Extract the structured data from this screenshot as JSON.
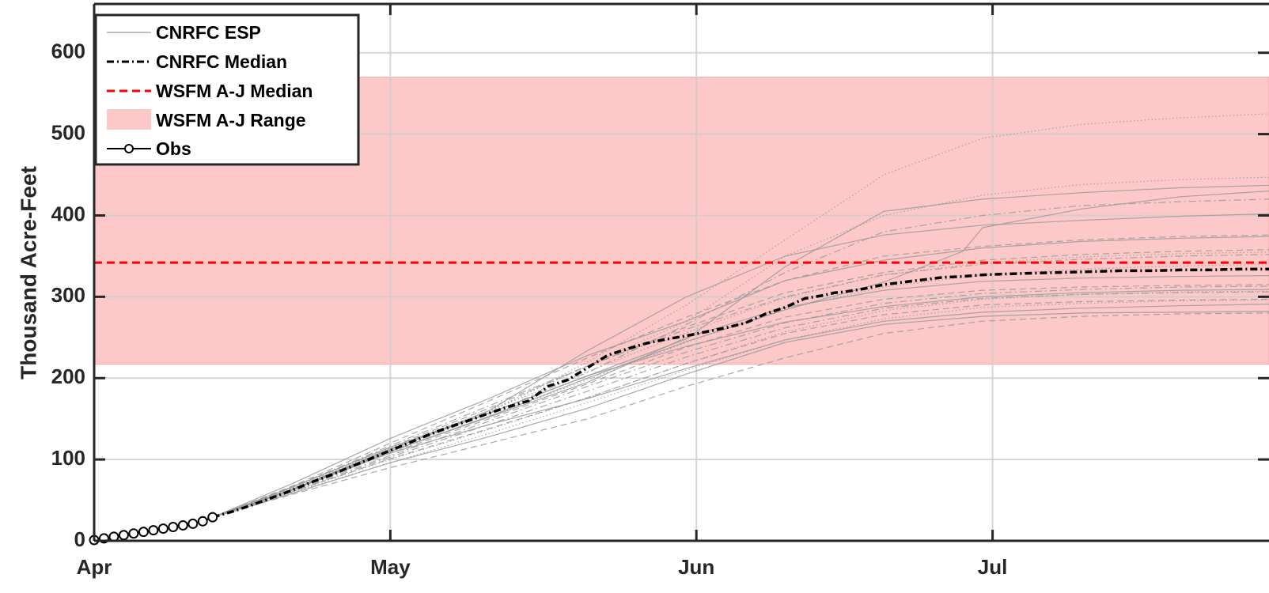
{
  "chart_data": {
    "type": "line",
    "xlabel": "",
    "ylabel": "Thousand Acre-Feet",
    "x_tick_labels": [
      "Apr",
      "May",
      "Jun",
      "Jul"
    ],
    "x_ticks_day": [
      0,
      30,
      61,
      91
    ],
    "x_range_day": [
      0,
      119
    ],
    "ylim": [
      0,
      660
    ],
    "y_ticks": [
      0,
      100,
      200,
      300,
      400,
      500,
      600
    ],
    "grid": true,
    "legend_position": "top-left",
    "legend": [
      "CNRFC ESP",
      "CNRFC Median",
      "WSFM A-J Median",
      "WSFM A-J Range",
      "Obs"
    ],
    "wsfm_range": [
      217,
      570
    ],
    "wsfm_median": 342,
    "obs": {
      "day": [
        0,
        1,
        2,
        3,
        4,
        5,
        6,
        7,
        8,
        9,
        10,
        11,
        12
      ],
      "value": [
        1,
        3,
        5,
        7,
        9,
        11,
        13,
        15,
        17,
        19,
        21,
        24,
        29
      ]
    },
    "cnrfc_median": {
      "day": [
        12,
        14,
        16,
        18,
        20,
        22,
        24,
        26,
        28,
        30,
        32,
        34,
        36,
        38,
        40,
        42,
        44,
        46,
        48,
        50,
        52,
        54,
        56,
        58,
        60,
        62,
        64,
        66,
        68,
        70,
        72,
        74,
        75,
        76,
        78,
        80,
        82,
        84,
        86,
        88,
        90,
        92,
        95,
        98,
        101,
        104,
        107,
        110,
        113,
        116,
        119
      ],
      "value": [
        29,
        36,
        44,
        53,
        62,
        72,
        81,
        91,
        101,
        111,
        121,
        131,
        140,
        148,
        157,
        165,
        172,
        190,
        198,
        213,
        228,
        236,
        243,
        248,
        252,
        257,
        262,
        268,
        279,
        287,
        298,
        302,
        305,
        306,
        310,
        315,
        318,
        321,
        324,
        325,
        327,
        328,
        329,
        330,
        331,
        332,
        332,
        333,
        333,
        334,
        334
      ]
    },
    "esp_traces": [
      {
        "style": "solid",
        "day": [
          12,
          20,
          30,
          40,
          50,
          60,
          70,
          80,
          90,
          100,
          110,
          119
        ],
        "value": [
          29,
          63,
          108,
          143,
          175,
          212,
          247,
          270,
          281,
          286,
          289,
          291
        ]
      },
      {
        "style": "solid",
        "day": [
          12,
          20,
          30,
          40,
          50,
          60,
          70,
          80,
          90,
          100,
          110,
          119
        ],
        "value": [
          29,
          66,
          115,
          157,
          203,
          239,
          269,
          288,
          300,
          305,
          308,
          309
        ]
      },
      {
        "style": "solid",
        "day": [
          12,
          20,
          30,
          40,
          50,
          60,
          70,
          80,
          90,
          100,
          110,
          119
        ],
        "value": [
          29,
          58,
          96,
          128,
          163,
          205,
          244,
          266,
          276,
          280,
          281,
          282
        ]
      },
      {
        "style": "solid",
        "day": [
          12,
          20,
          30,
          40,
          50,
          60,
          70,
          80,
          90,
          100,
          110,
          119
        ],
        "value": [
          29,
          63,
          112,
          160,
          234,
          300,
          350,
          376,
          388,
          394,
          399,
          402
        ]
      },
      {
        "style": "solid",
        "day": [
          12,
          20,
          30,
          40,
          50,
          60,
          70,
          80,
          90,
          100,
          110,
          119
        ],
        "value": [
          29,
          62,
          110,
          152,
          195,
          250,
          287,
          308,
          319,
          323,
          325,
          326
        ]
      },
      {
        "style": "solid",
        "day": [
          12,
          20,
          30,
          40,
          50,
          60,
          70,
          80,
          90,
          100,
          110,
          119
        ],
        "value": [
          29,
          70,
          126,
          175,
          228,
          270,
          320,
          345,
          360,
          368,
          372,
          374
        ]
      },
      {
        "style": "solid",
        "day": [
          12,
          20,
          30,
          40,
          50,
          60,
          70,
          80,
          88,
          90,
          100,
          110,
          119
        ],
        "value": [
          29,
          63,
          110,
          153,
          200,
          245,
          284,
          318,
          356,
          385,
          408,
          423,
          430
        ]
      },
      {
        "style": "solid",
        "day": [
          12,
          20,
          30,
          40,
          50,
          60,
          70,
          80,
          90,
          100,
          110,
          119
        ],
        "value": [
          29,
          63,
          113,
          157,
          203,
          248,
          337,
          405,
          420,
          428,
          434,
          437
        ]
      },
      {
        "style": "dashed",
        "day": [
          12,
          20,
          30,
          40,
          50,
          60,
          70,
          80,
          90,
          100,
          110,
          119
        ],
        "value": [
          29,
          57,
          90,
          120,
          150,
          190,
          225,
          255,
          270,
          276,
          279,
          280
        ]
      },
      {
        "style": "dashed",
        "day": [
          12,
          20,
          30,
          40,
          50,
          60,
          70,
          80,
          90,
          100,
          110,
          119
        ],
        "value": [
          29,
          60,
          101,
          138,
          176,
          218,
          255,
          278,
          290,
          294,
          296,
          297
        ]
      },
      {
        "style": "dashed",
        "day": [
          12,
          20,
          30,
          40,
          50,
          60,
          70,
          80,
          90,
          100,
          110,
          119
        ],
        "value": [
          29,
          62,
          108,
          150,
          193,
          238,
          275,
          297,
          308,
          312,
          314,
          315
        ]
      },
      {
        "style": "dashed",
        "day": [
          12,
          20,
          30,
          40,
          50,
          60,
          70,
          80,
          90,
          100,
          110,
          119
        ],
        "value": [
          29,
          65,
          115,
          163,
          215,
          263,
          305,
          330,
          345,
          352,
          356,
          358
        ]
      },
      {
        "style": "dashed",
        "day": [
          12,
          20,
          30,
          40,
          50,
          60,
          70,
          80,
          90,
          100,
          110,
          119
        ],
        "value": [
          29,
          67,
          120,
          172,
          225,
          275,
          320,
          350,
          362,
          370,
          374,
          376
        ]
      },
      {
        "style": "dashdot",
        "day": [
          12,
          20,
          30,
          40,
          50,
          60,
          70,
          80,
          90,
          100,
          110,
          119
        ],
        "value": [
          29,
          63,
          111,
          156,
          207,
          266,
          330,
          380,
          400,
          412,
          417,
          420
        ]
      },
      {
        "style": "dashdot",
        "day": [
          12,
          20,
          30,
          40,
          50,
          60,
          70,
          80,
          90,
          100,
          110,
          119
        ],
        "value": [
          29,
          66,
          117,
          166,
          215,
          260,
          300,
          327,
          340,
          346,
          350,
          352
        ]
      },
      {
        "style": "dashdot",
        "day": [
          12,
          20,
          30,
          40,
          50,
          60,
          70,
          80,
          90,
          100,
          110,
          119
        ],
        "value": [
          29,
          61,
          105,
          147,
          190,
          232,
          268,
          292,
          304,
          309,
          312,
          313
        ]
      },
      {
        "style": "dashdot",
        "day": [
          12,
          20,
          30,
          40,
          50,
          60,
          70,
          80,
          90,
          100,
          110,
          119
        ],
        "value": [
          29,
          60,
          103,
          143,
          184,
          226,
          262,
          286,
          298,
          303,
          305,
          306
        ]
      },
      {
        "style": "dotted",
        "day": [
          12,
          20,
          30,
          40,
          50,
          60,
          70,
          80,
          90,
          100,
          110,
          119
        ],
        "value": [
          29,
          63,
          111,
          158,
          220,
          290,
          370,
          450,
          495,
          512,
          520,
          525
        ]
      },
      {
        "style": "dotted",
        "day": [
          12,
          20,
          30,
          40,
          50,
          60,
          70,
          80,
          90,
          100,
          110,
          119
        ],
        "value": [
          29,
          64,
          112,
          160,
          215,
          270,
          350,
          400,
          425,
          438,
          444,
          447
        ]
      },
      {
        "style": "dotted",
        "day": [
          12,
          20,
          30,
          40,
          50,
          60,
          70,
          80,
          90,
          100,
          110,
          119
        ],
        "value": [
          29,
          60,
          100,
          137,
          176,
          218,
          257,
          283,
          297,
          303,
          306,
          307
        ]
      },
      {
        "style": "dotted",
        "day": [
          12,
          20,
          30,
          40,
          50,
          60,
          70,
          80,
          90,
          100,
          110,
          119
        ],
        "value": [
          29,
          65,
          114,
          160,
          208,
          256,
          299,
          327,
          342,
          349,
          353,
          355
        ]
      },
      {
        "style": "dotted",
        "day": [
          12,
          20,
          30,
          40,
          50,
          60,
          70,
          80,
          90,
          100,
          110,
          119
        ],
        "value": [
          29,
          59,
          96,
          132,
          170,
          210,
          247,
          273,
          287,
          292,
          295,
          296
        ]
      },
      {
        "style": "dotted",
        "day": [
          12,
          20,
          30,
          40,
          50,
          60,
          70,
          80,
          90,
          100,
          110,
          119
        ],
        "value": [
          29,
          62,
          109,
          153,
          198,
          244,
          285,
          312,
          327,
          334,
          338,
          340
        ]
      }
    ]
  }
}
